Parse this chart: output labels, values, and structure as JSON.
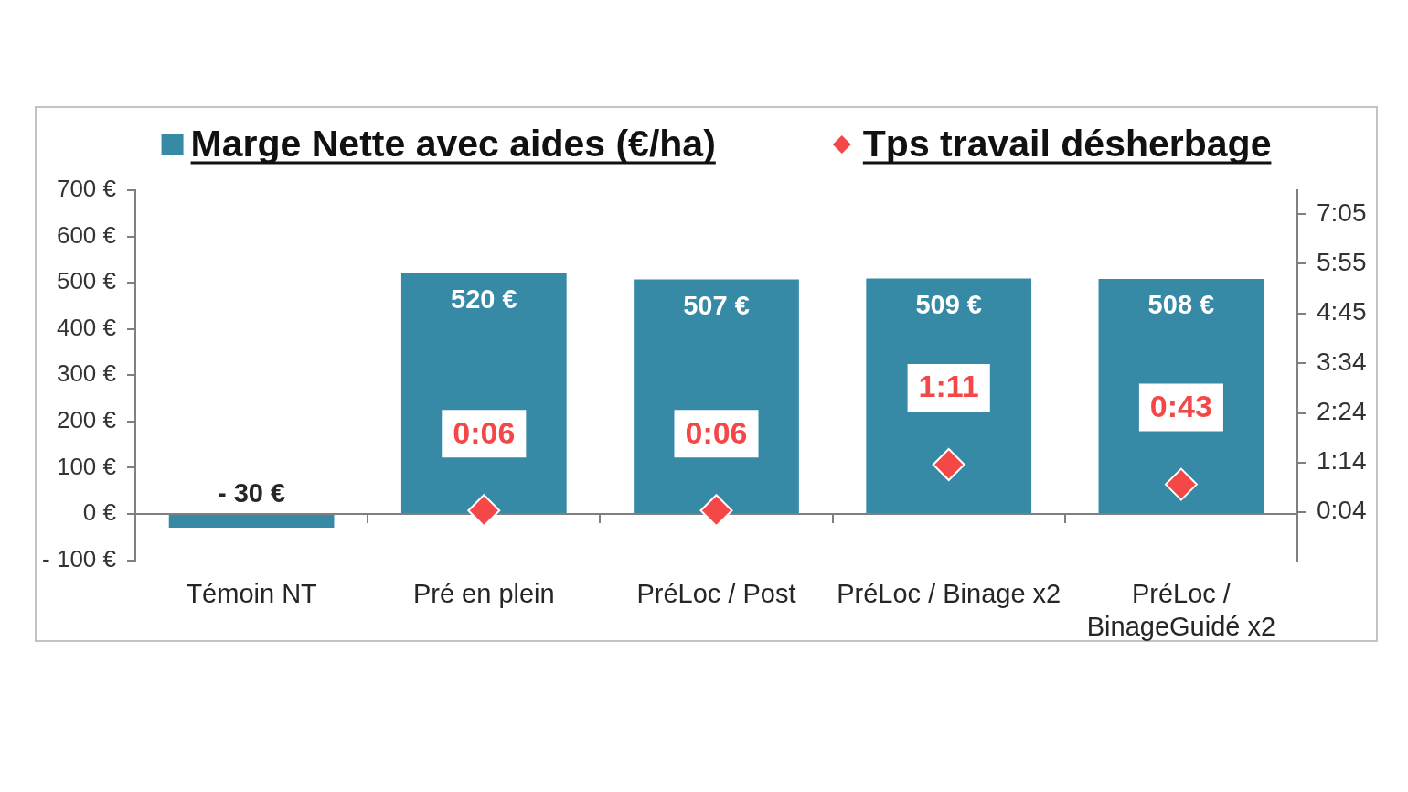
{
  "chart_data": {
    "type": "bar",
    "categories": [
      "Témoin NT",
      "Pré en plein",
      "PréLoc / Post",
      "PréLoc / Binage x2",
      "PréLoc / BinageGuidé x2"
    ],
    "series": [
      {
        "name": "Marge Nette avec aides (€/ha)",
        "color": "#378aa5",
        "values": [
          -30,
          520,
          507,
          509,
          508
        ],
        "value_labels": [
          "- 30 €",
          "520 €",
          "507 €",
          "509 €",
          "508 €"
        ]
      },
      {
        "name": "Tps travail désherbage",
        "type": "scatter",
        "axis": "y2",
        "color": "#f44747",
        "values": [
          null,
          0.1,
          0.1,
          1.1833,
          0.7167
        ],
        "value_labels": [
          null,
          "0:06",
          "0:06",
          "1:11",
          "0:43"
        ]
      }
    ],
    "ylim": [
      -100,
      700
    ],
    "yticks": [
      {
        "value": -100,
        "label": "- 100 €"
      },
      {
        "value": 0,
        "label": "0 €"
      },
      {
        "value": 100,
        "label": "100 €"
      },
      {
        "value": 200,
        "label": "200 €"
      },
      {
        "value": 300,
        "label": "300 €"
      },
      {
        "value": 400,
        "label": "400 €"
      },
      {
        "value": 500,
        "label": "500 €"
      },
      {
        "value": 600,
        "label": "600 €"
      },
      {
        "value": 700,
        "label": "700 €"
      }
    ],
    "y2lim": [
      -1.07,
      7.65
    ],
    "y2ticks": [
      {
        "value": 0.0667,
        "label": "0:04"
      },
      {
        "value": 1.2333,
        "label": "1:14"
      },
      {
        "value": 2.4,
        "label": "2:24"
      },
      {
        "value": 3.5667,
        "label": "3:34"
      },
      {
        "value": 4.75,
        "label": "4:45"
      },
      {
        "value": 5.9167,
        "label": "5:55"
      },
      {
        "value": 7.0833,
        "label": "7:05"
      }
    ],
    "legend": "top",
    "marker": "diamond"
  }
}
